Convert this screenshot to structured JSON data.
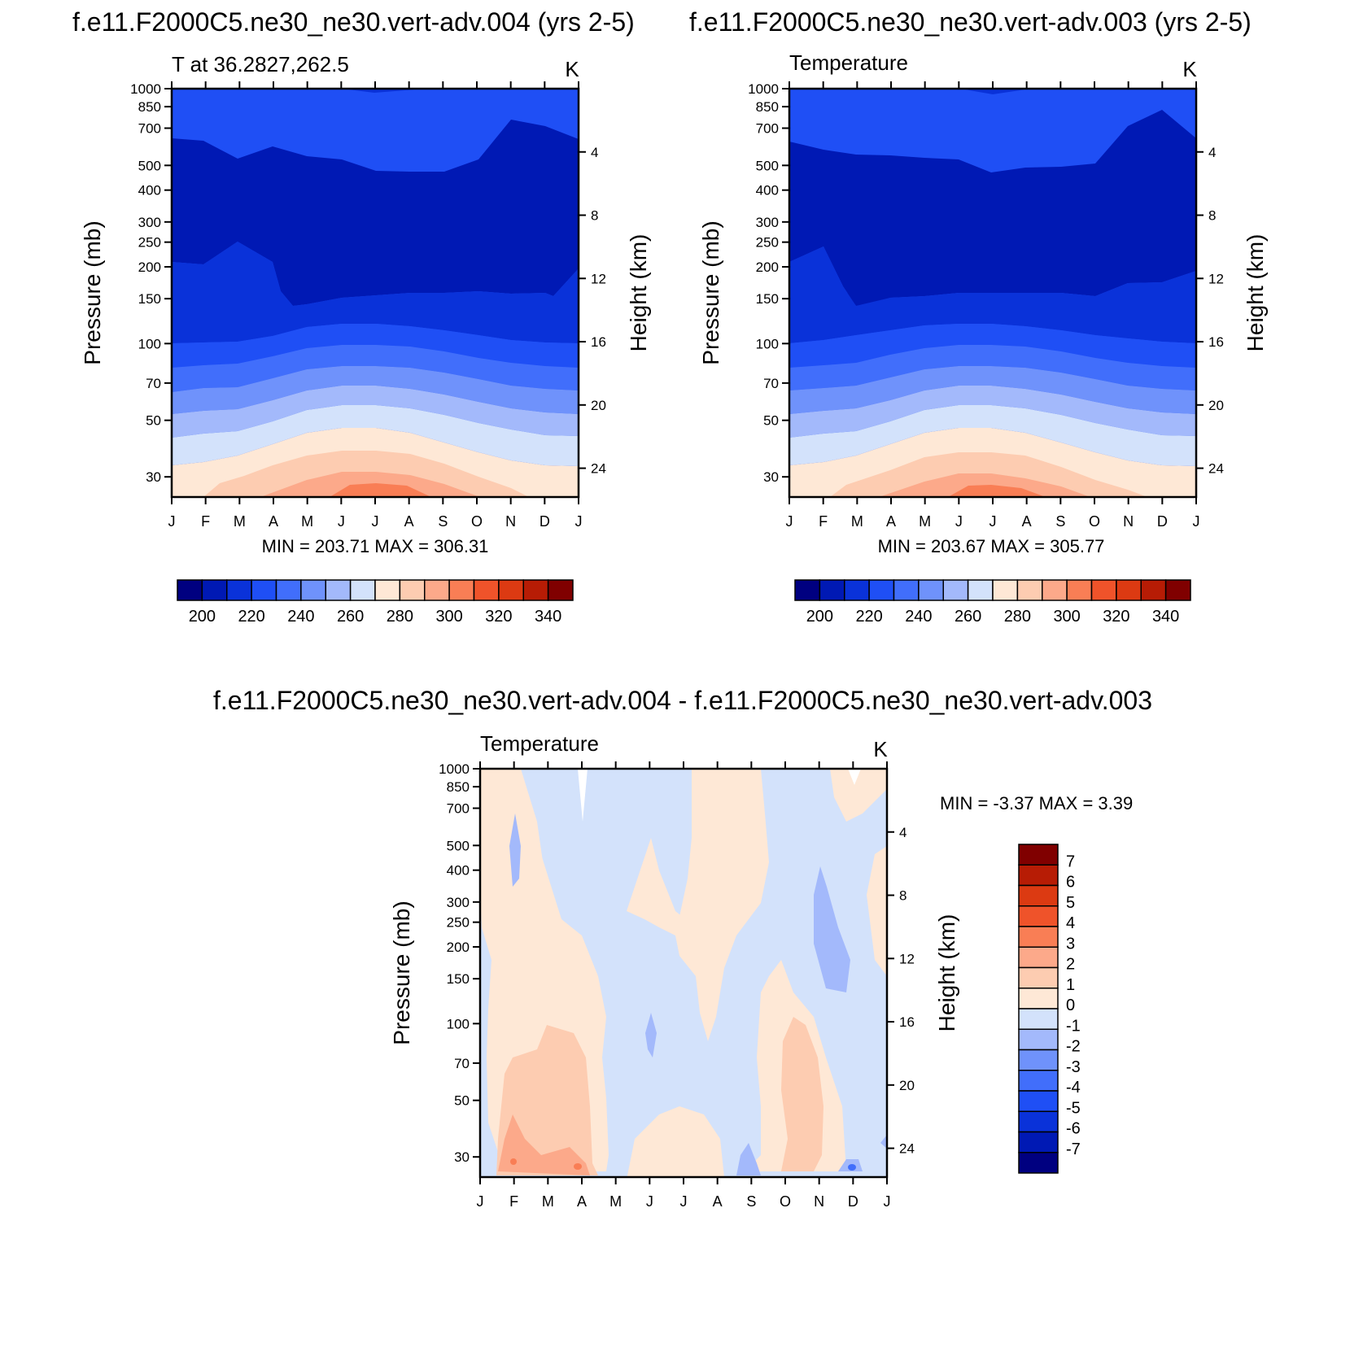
{
  "chart_data": [
    {
      "type": "contour",
      "title": "f.e11.F2000C5.ne30_ne30.vert-adv.004 (yrs 2-5)",
      "left_label": "T at 36.2827,262.5",
      "units": "K",
      "stats": "MIN = 203.71 MAX = 306.31",
      "ylabel_left": "Pressure (mb)",
      "ylabel_right": "Height (km)",
      "months": [
        "J",
        "F",
        "M",
        "A",
        "M",
        "J",
        "J",
        "A",
        "S",
        "O",
        "N",
        "D",
        "J"
      ],
      "pressure_ticks": [
        "30",
        "50",
        "70",
        "100",
        "150",
        "200",
        "250",
        "300",
        "400",
        "500",
        "700",
        "850",
        "1000"
      ],
      "height_ticks": [
        "24",
        "20",
        "16",
        "12",
        "8",
        "4"
      ],
      "colorbar_labels": [
        "200",
        "220",
        "240",
        "260",
        "280",
        "300",
        "320",
        "340"
      ],
      "y_scale": "log-pressure",
      "ylim": [
        1000,
        25
      ],
      "contour_levels": [
        200,
        210,
        220,
        230,
        240,
        250,
        260,
        270,
        280,
        290,
        300,
        310,
        320,
        330,
        340
      ]
    },
    {
      "type": "contour",
      "title": "f.e11.F2000C5.ne30_ne30.vert-adv.003 (yrs 2-5)",
      "left_label": "Temperature",
      "units": "K",
      "stats": "MIN = 203.67 MAX = 305.77",
      "ylabel_left": "Pressure (mb)",
      "ylabel_right": "Height (km)",
      "months": [
        "J",
        "F",
        "M",
        "A",
        "M",
        "J",
        "J",
        "A",
        "S",
        "O",
        "N",
        "D",
        "J"
      ],
      "pressure_ticks": [
        "30",
        "50",
        "70",
        "100",
        "150",
        "200",
        "250",
        "300",
        "400",
        "500",
        "700",
        "850",
        "1000"
      ],
      "height_ticks": [
        "24",
        "20",
        "16",
        "12",
        "8",
        "4"
      ],
      "colorbar_labels": [
        "200",
        "220",
        "240",
        "260",
        "280",
        "300",
        "320",
        "340"
      ],
      "y_scale": "log-pressure",
      "ylim": [
        1000,
        25
      ],
      "contour_levels": [
        200,
        210,
        220,
        230,
        240,
        250,
        260,
        270,
        280,
        290,
        300,
        310,
        320,
        330,
        340
      ]
    },
    {
      "type": "contour",
      "title": "f.e11.F2000C5.ne30_ne30.vert-adv.004 - f.e11.F2000C5.ne30_ne30.vert-adv.003",
      "left_label": "Temperature",
      "units": "K",
      "stats": "MIN =  -3.37 MAX =   3.39",
      "ylabel_left": "Pressure (mb)",
      "ylabel_right": "Height (km)",
      "months": [
        "J",
        "F",
        "M",
        "A",
        "M",
        "J",
        "J",
        "A",
        "S",
        "O",
        "N",
        "D",
        "J"
      ],
      "pressure_ticks": [
        "30",
        "50",
        "70",
        "100",
        "150",
        "200",
        "250",
        "300",
        "400",
        "500",
        "700",
        "850",
        "1000"
      ],
      "height_ticks": [
        "24",
        "20",
        "16",
        "12",
        "8",
        "4"
      ],
      "colorbar_labels": [
        "7",
        "6",
        "5",
        "4",
        "3",
        "2",
        "1",
        "0",
        "-1",
        "-2",
        "-3",
        "-4",
        "-5",
        "-6",
        "-7"
      ],
      "y_scale": "log-pressure",
      "ylim": [
        1000,
        25
      ],
      "contour_levels": [
        -7,
        -6,
        -5,
        -4,
        -3,
        -2,
        -1,
        0,
        1,
        2,
        3,
        4,
        5,
        6,
        7
      ]
    }
  ],
  "colors": {
    "temp_palette": [
      "#000080",
      "#0019B4",
      "#0A32D9",
      "#1F4FF5",
      "#416EFB",
      "#6F92FB",
      "#A3B9FB",
      "#D3E2FB",
      "#FEE8D6",
      "#FDCCB1",
      "#FCA98A",
      "#F97E55",
      "#EF532A",
      "#DC3A12",
      "#B71C05",
      "#800000"
    ],
    "diff_palette": [
      "#800000",
      "#B71C05",
      "#DC3A12",
      "#EF532A",
      "#F97E55",
      "#FCA98A",
      "#FDCCB1",
      "#FEE8D6",
      "#D3E2FB",
      "#A3B9FB",
      "#6F92FB",
      "#416EFB",
      "#1F4FF5",
      "#0A32D9",
      "#0019B4",
      "#000080"
    ]
  }
}
